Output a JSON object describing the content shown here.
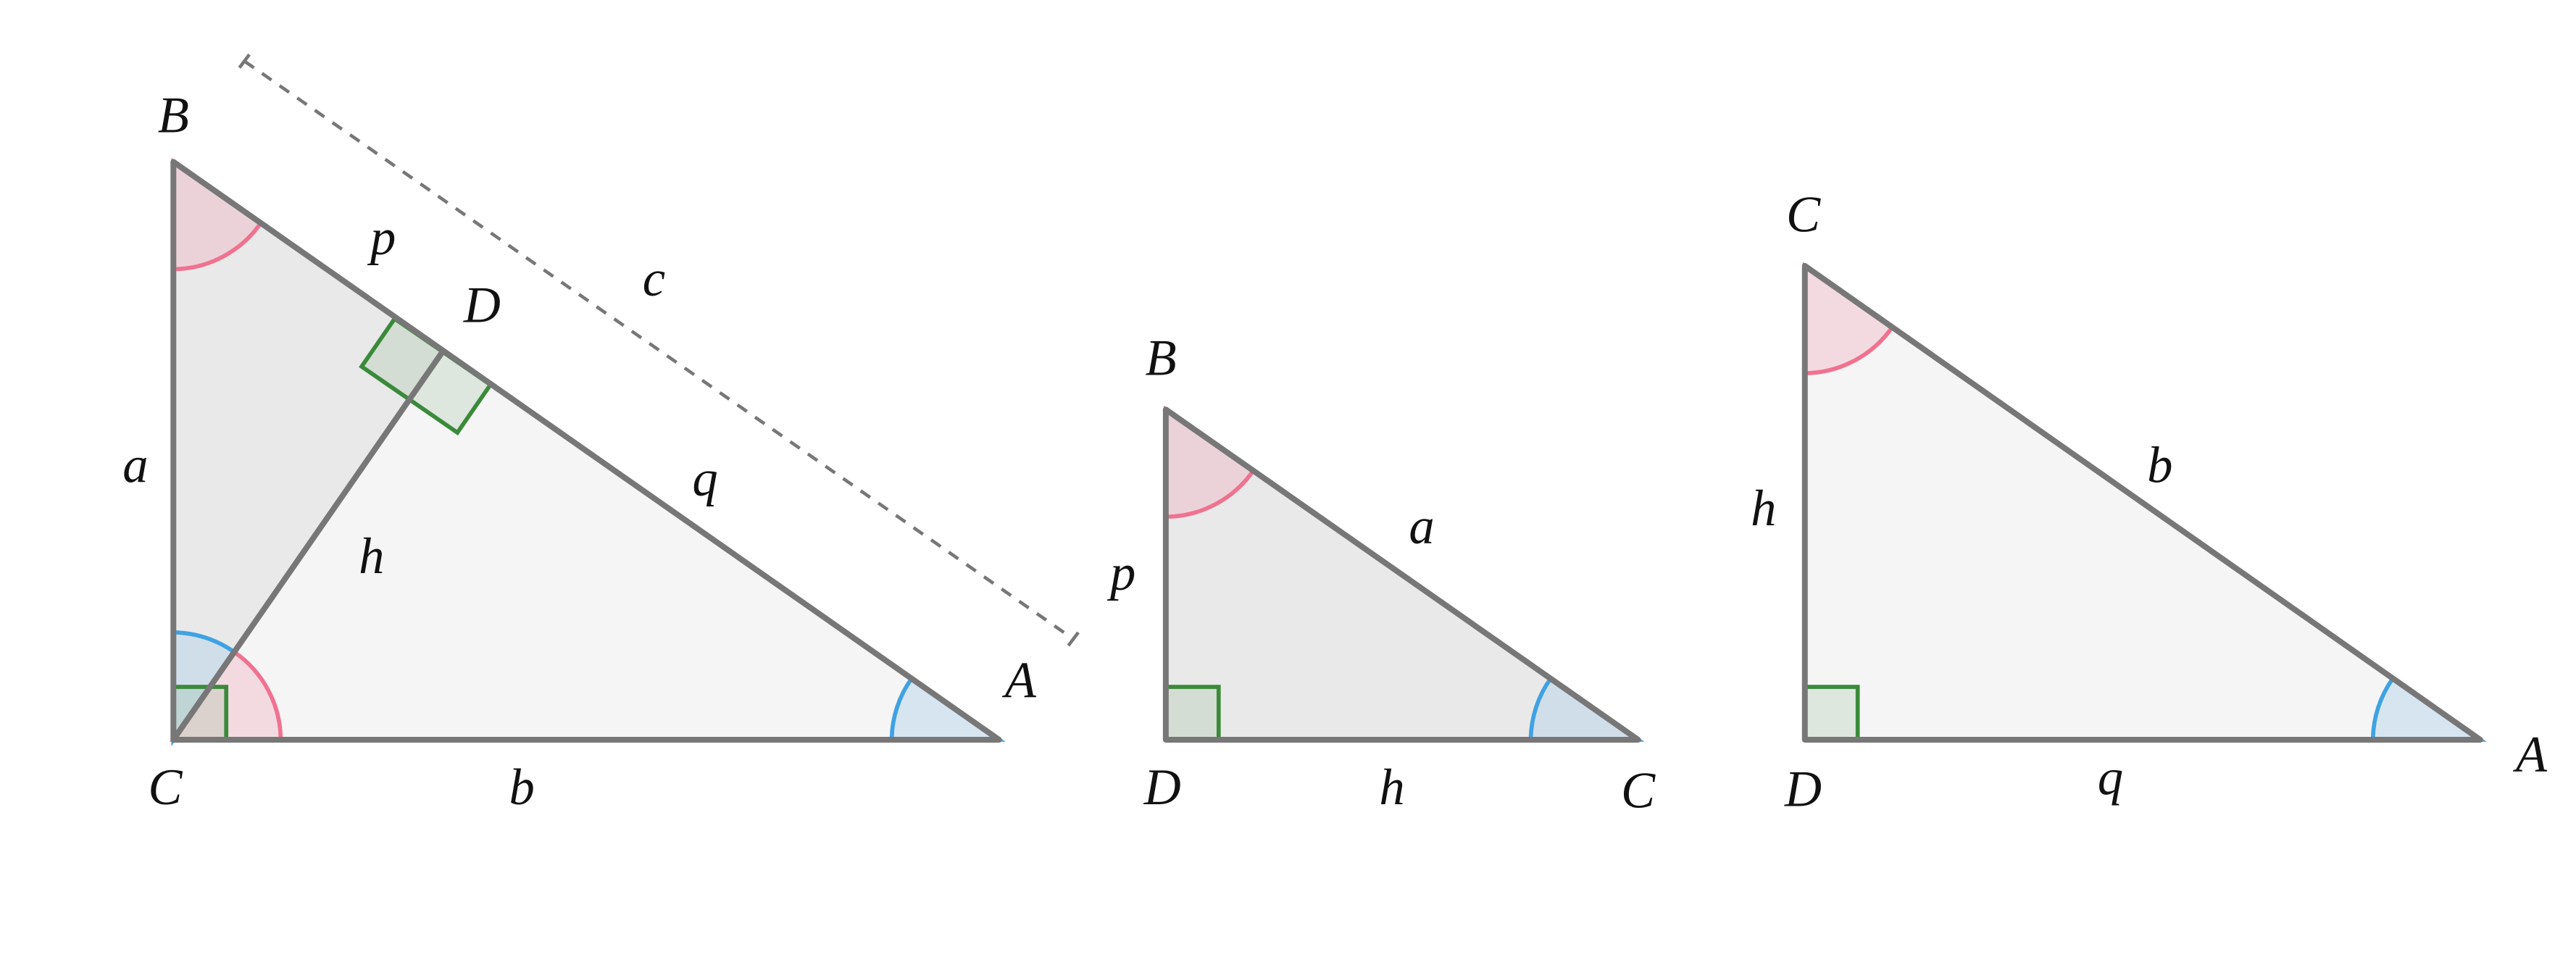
{
  "figures": [
    {
      "vertices": [
        "B",
        "C",
        "A",
        "D"
      ],
      "sides": [
        "a",
        "b",
        "c",
        "p",
        "q",
        "h"
      ]
    },
    {
      "vertices": [
        "B",
        "D",
        "C"
      ],
      "sides": [
        "p",
        "a",
        "h"
      ]
    },
    {
      "vertices": [
        "C",
        "D",
        "A"
      ],
      "sides": [
        "h",
        "b",
        "q"
      ]
    }
  ]
}
